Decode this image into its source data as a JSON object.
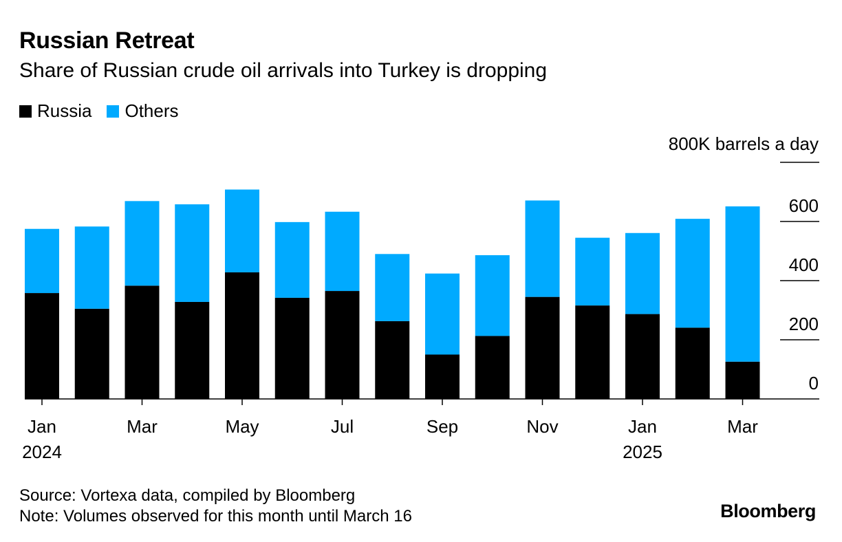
{
  "title": "Russian Retreat",
  "subtitle": "Share of Russian crude oil arrivals into Turkey is dropping",
  "legend": [
    {
      "label": "Russia",
      "color": "#000000"
    },
    {
      "label": "Others",
      "color": "#00aaff"
    }
  ],
  "unit_label": "800K barrels a day",
  "footer": {
    "source": "Source: Vortexa data, compiled by Bloomberg",
    "note": "Note: Volumes observed for this month until March 16"
  },
  "brand": "Bloomberg",
  "chart_data": {
    "type": "bar",
    "stacked": true,
    "title": "Russian Retreat",
    "subtitle": "Share of Russian crude oil arrivals into Turkey is dropping",
    "categories": [
      "Jan 2024",
      "Feb 2024",
      "Mar 2024",
      "Apr 2024",
      "May 2024",
      "Jun 2024",
      "Jul 2024",
      "Aug 2024",
      "Sep 2024",
      "Oct 2024",
      "Nov 2024",
      "Dec 2024",
      "Jan 2025",
      "Feb 2025",
      "Mar 2025"
    ],
    "x_tick_labels": [
      {
        "index": 0,
        "line1": "Jan",
        "line2": "2024"
      },
      {
        "index": 2,
        "line1": "Mar",
        "line2": ""
      },
      {
        "index": 4,
        "line1": "May",
        "line2": ""
      },
      {
        "index": 6,
        "line1": "Jul",
        "line2": ""
      },
      {
        "index": 8,
        "line1": "Sep",
        "line2": ""
      },
      {
        "index": 10,
        "line1": "Nov",
        "line2": ""
      },
      {
        "index": 12,
        "line1": "Jan",
        "line2": "2025"
      },
      {
        "index": 14,
        "line1": "Mar",
        "line2": ""
      }
    ],
    "series": [
      {
        "name": "Russia",
        "color": "#000000",
        "values": [
          358,
          305,
          383,
          328,
          428,
          342,
          365,
          263,
          150,
          213,
          345,
          316,
          287,
          241,
          126
        ]
      },
      {
        "name": "Others",
        "color": "#00aaff",
        "values": [
          217,
          278,
          286,
          330,
          280,
          256,
          268,
          227,
          274,
          273,
          326,
          229,
          274,
          368,
          525
        ]
      }
    ],
    "ylim": [
      0,
      800
    ],
    "yticks": [
      0,
      200,
      400,
      600,
      800
    ],
    "ytick_labels": [
      "0",
      "200",
      "400",
      "600",
      "800K barrels a day"
    ],
    "ylabel": "800K barrels a day",
    "grid": false,
    "legend_position": "top-left"
  }
}
